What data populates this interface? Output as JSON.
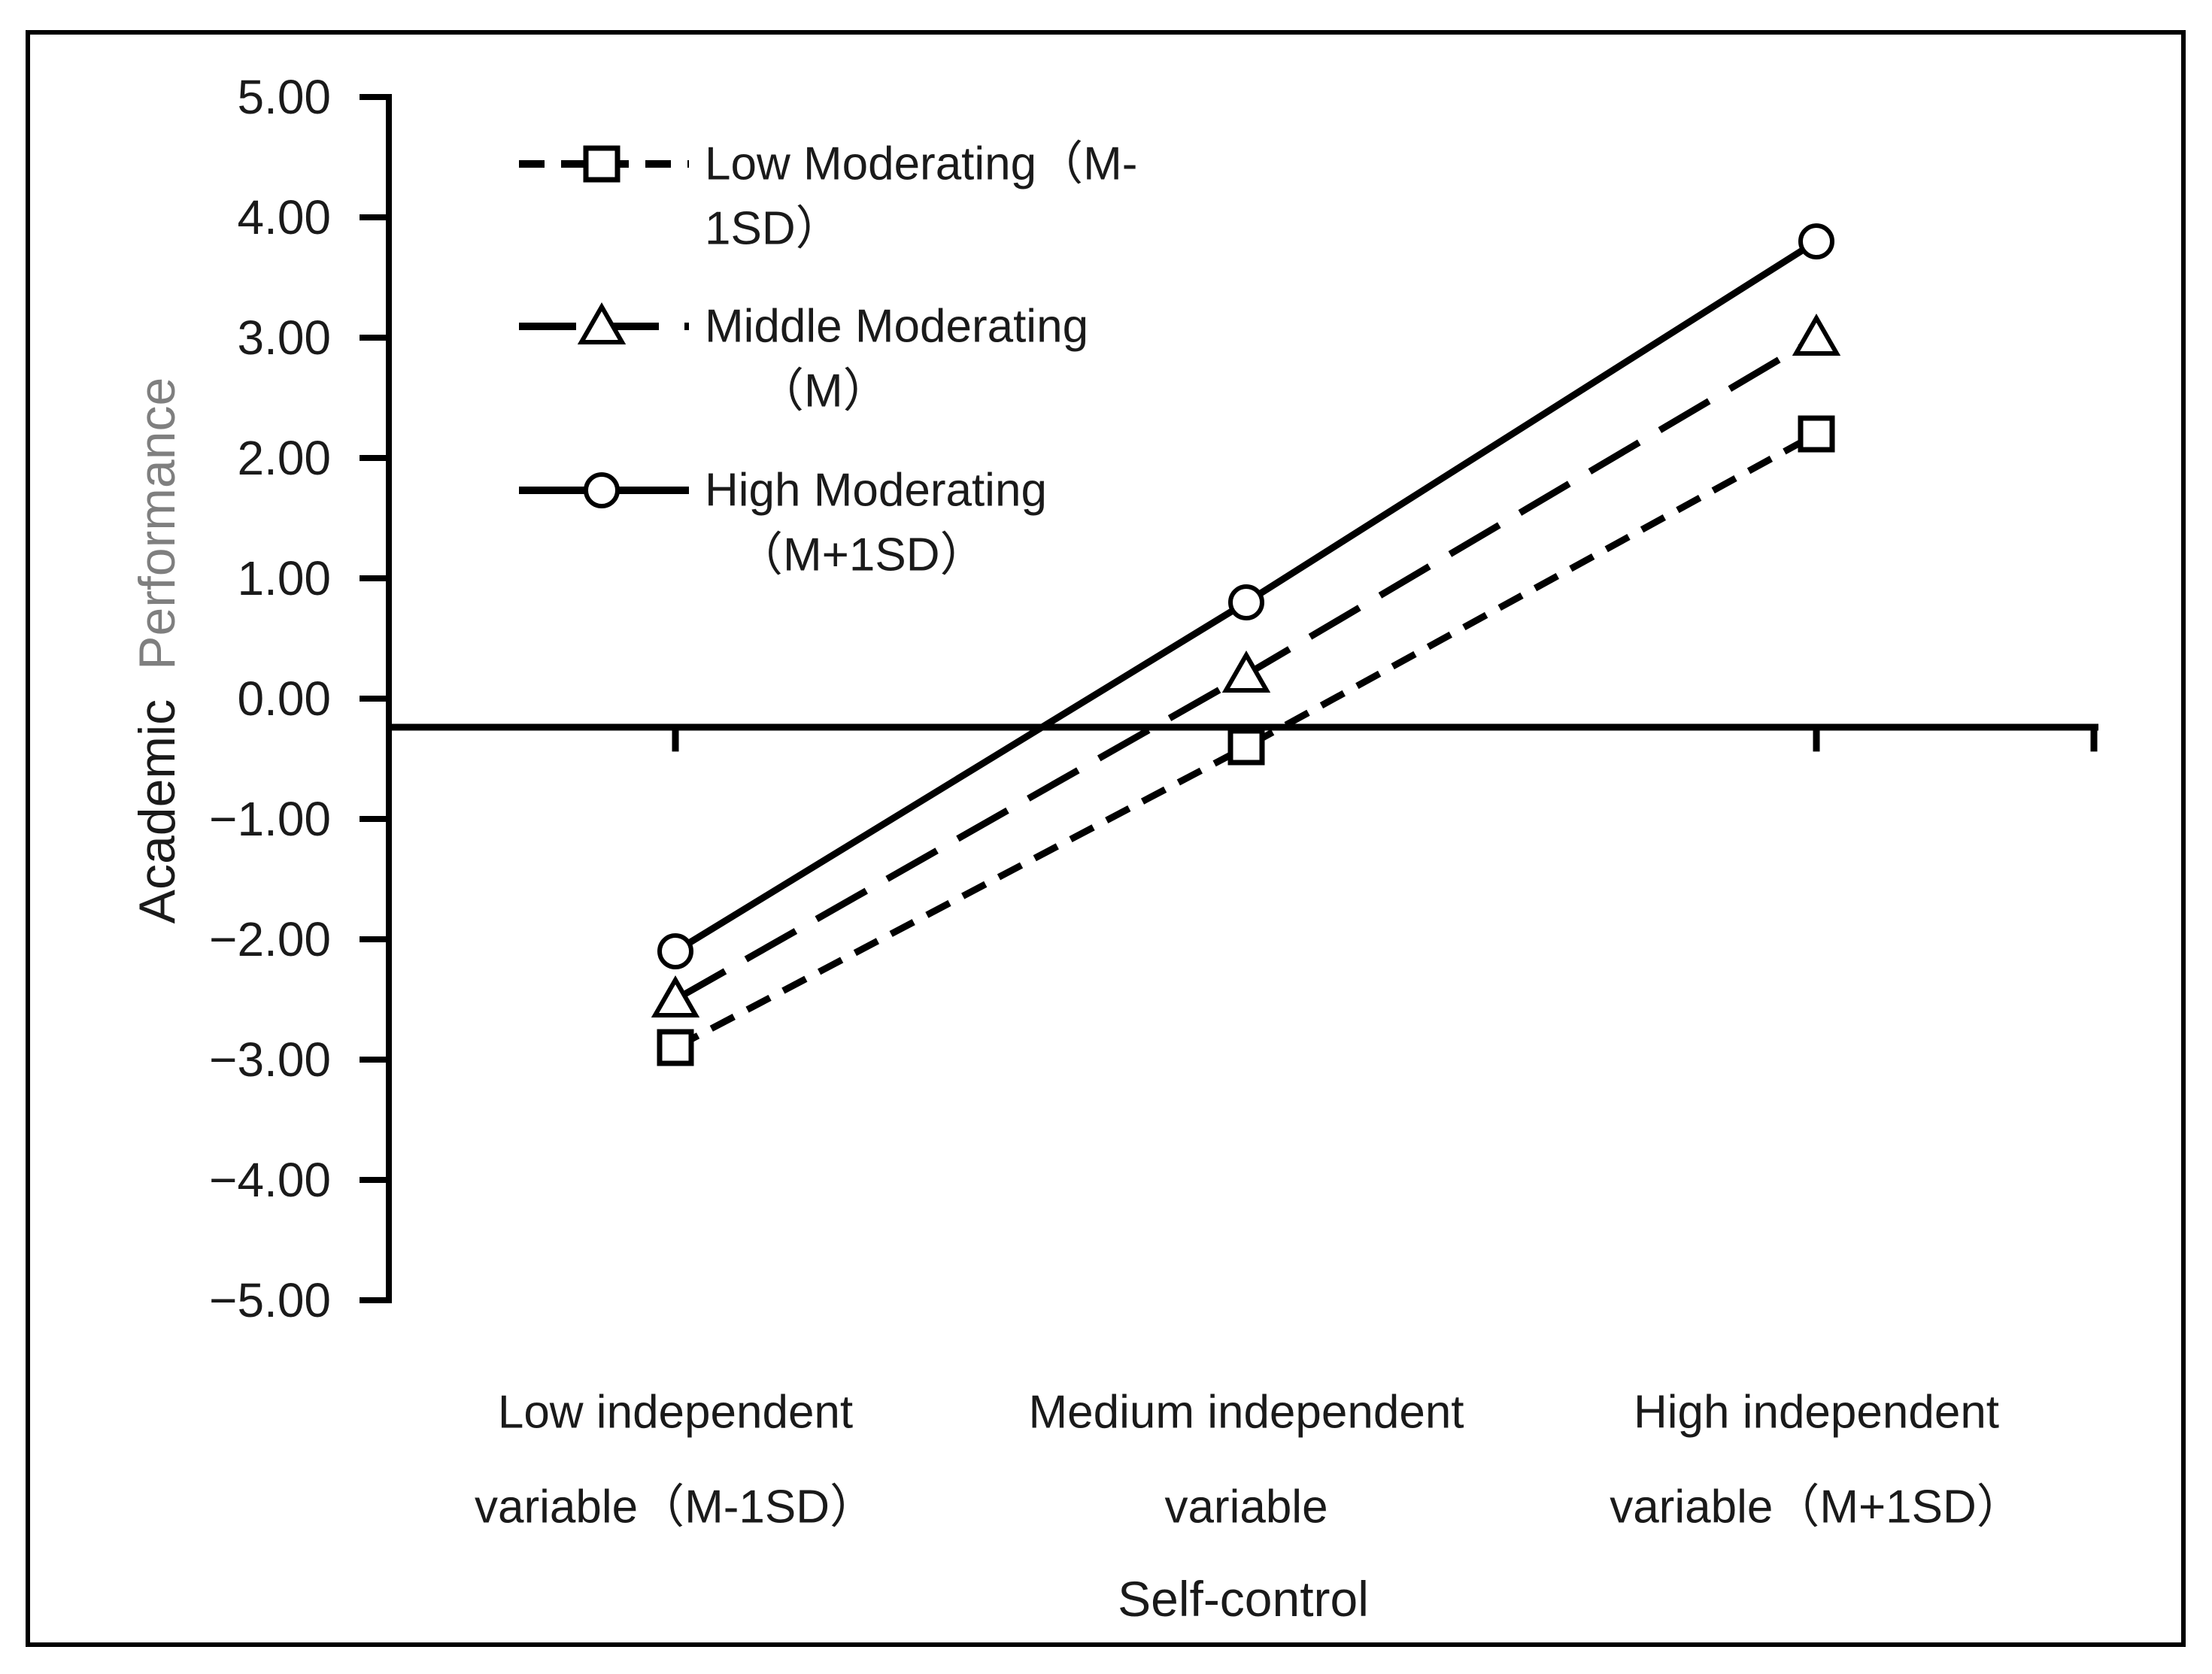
{
  "figure": {
    "background": "#ffffff",
    "border_color": "#000000"
  },
  "y_axis": {
    "title_part1": "Academic",
    "title_part2": "Performance",
    "title_part2_color": "#7f7f7f",
    "ticks": [
      "5.00",
      "4.00",
      "3.00",
      "2.00",
      "1.00",
      "0.00",
      "−1.00",
      "−2.00",
      "−3.00",
      "−4.00",
      "−5.00"
    ]
  },
  "x_axis": {
    "title": "Self-control",
    "categories": [
      {
        "line1": "Low independent",
        "line2": "variable（M-1SD）"
      },
      {
        "line1": "Medium independent",
        "line2": "variable"
      },
      {
        "line1": "High independent",
        "line2": "variable（M+1SD）"
      }
    ]
  },
  "legend": {
    "items": [
      {
        "line1": "Low Moderating（M-",
        "line2": "1SD）",
        "marker": "square",
        "dash": "short"
      },
      {
        "line1": "Middle Moderating",
        "line2": "（M）",
        "marker": "triangle",
        "dash": "long"
      },
      {
        "line1": "High Moderating",
        "line2": "（M+1SD）",
        "marker": "circle",
        "dash": "solid"
      }
    ]
  },
  "chart_data": {
    "type": "line",
    "title": "",
    "xlabel": "Self-control",
    "ylabel": "Academic Performance",
    "ylim": [
      -5,
      5
    ],
    "ytick_step": 1.0,
    "grid": false,
    "legend_position": "upper-left-inside",
    "axis_cross_y": -0.24,
    "categories": [
      "Low independent variable（M-1SD）",
      "Medium independent variable",
      "High independent variable（M+1SD）"
    ],
    "series": [
      {
        "name": "Low Moderating（M-1SD）",
        "marker": "square",
        "line_style": "short-dash",
        "color": "#000000",
        "values": [
          -2.9,
          -0.4,
          2.2
        ]
      },
      {
        "name": "Middle Moderating（M）",
        "marker": "triangle",
        "line_style": "long-dash",
        "color": "#000000",
        "values": [
          -2.5,
          0.2,
          3.0
        ]
      },
      {
        "name": "High Moderating（M+1SD）",
        "marker": "circle",
        "line_style": "solid",
        "color": "#000000",
        "values": [
          -2.1,
          0.8,
          3.8
        ]
      }
    ]
  }
}
